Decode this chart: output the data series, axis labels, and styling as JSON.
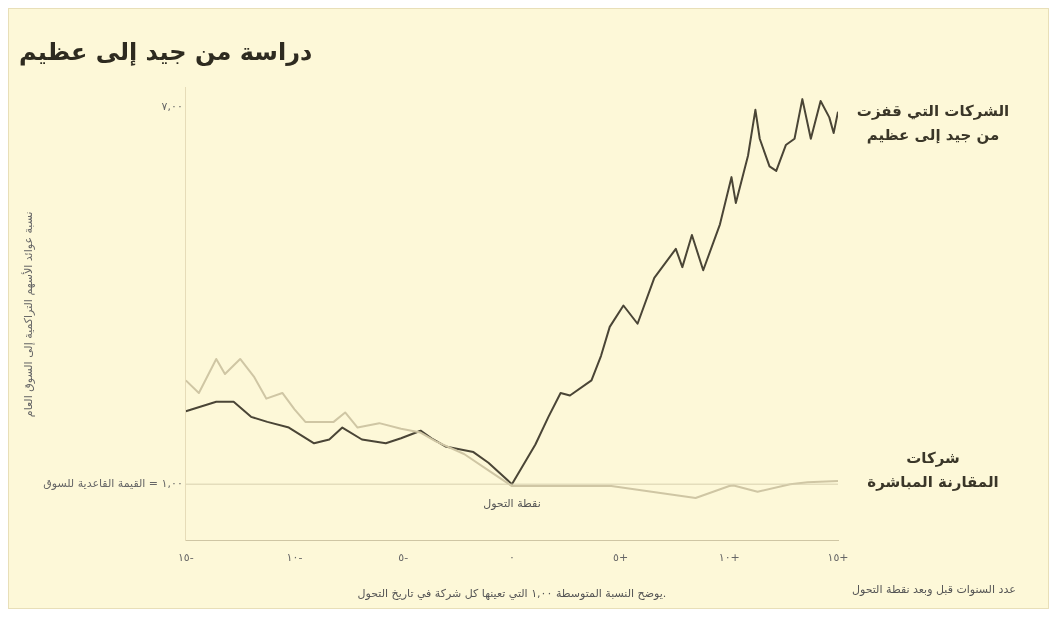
{
  "chart_data": {
    "type": "line",
    "title": "دراسة من جيد إلى عظيم",
    "xlabel": "عدد السنوات قبل وبعد نقطة التحول",
    "ylabel": "نسبة عوائد الأسهم التراكمية إلى السوق العام",
    "xlim": [
      -15,
      15
    ],
    "xticks": [
      {
        "value": -15,
        "label": "١٥-"
      },
      {
        "value": -10,
        "label": "١٠-"
      },
      {
        "value": -5,
        "label": "٥-"
      },
      {
        "value": 0,
        "label": "٠"
      },
      {
        "value": 5,
        "label": "٥+"
      },
      {
        "value": 10,
        "label": "١٠+"
      },
      {
        "value": 15,
        "label": "١٥+"
      }
    ],
    "ylim": [
      0.1,
      7.3
    ],
    "yticks": [
      {
        "value": 1,
        "label": "١,٠٠ = القيمة القاعدية للسوق"
      },
      {
        "value": 7,
        "label": "٧,٠٠"
      }
    ],
    "grid": false,
    "legend": false,
    "marker": "none",
    "line_style": "solid",
    "ref_lines": [
      {
        "axis": "y",
        "value": 1,
        "color": "#d8d0b0"
      }
    ],
    "annotations": [
      {
        "text": "نقطة التحول",
        "x": 0,
        "y": 1
      },
      "يوضح النسبة المتوسطة ١,٠٠ التي تعينها كل شركة في تاريخ التحول."
    ],
    "series": [
      {
        "name": "شركات المقارنة المباشرة",
        "color": "#cfc6a4",
        "x": [
          -15,
          -14.4,
          -13.6,
          -13.2,
          -12.5,
          -11.85,
          -11.3,
          -10.56,
          -10,
          -9.5,
          -8.2,
          -7.67,
          -7.1,
          -6.1,
          -5.1,
          -4.2,
          -3.5,
          -2.2,
          -1.08,
          0,
          1.34,
          4.57,
          8.45,
          10,
          10.2,
          11.3,
          12.8,
          13.6,
          15
        ],
        "values": [
          2.65,
          2.45,
          2.99,
          2.75,
          2.99,
          2.7,
          2.36,
          2.45,
          2.19,
          1.99,
          1.99,
          2.14,
          1.9,
          1.97,
          1.88,
          1.82,
          1.68,
          1.48,
          1.22,
          0.97,
          0.97,
          0.97,
          0.78,
          0.97,
          0.98,
          0.88,
          1.0,
          1.03,
          1.05
        ]
      },
      {
        "name": "الشركات التي قفزت من جيد إلى عظيم",
        "color": "#4a4536",
        "x": [
          -15,
          -13.6,
          -12.8,
          -12,
          -11.25,
          -10.26,
          -9.1,
          -8.4,
          -7.8,
          -6.9,
          -5.8,
          -5.1,
          -4.2,
          -3.7,
          -3.06,
          -1.77,
          -1.08,
          0,
          1.08,
          1.68,
          2.24,
          2.67,
          3.66,
          4.1,
          4.5,
          5.13,
          5.78,
          6.55,
          7.54,
          7.84,
          8.28,
          8.8,
          9.57,
          10.1,
          10.3,
          10.86,
          11.2,
          11.4,
          11.85,
          12.16,
          12.6,
          13,
          13.36,
          13.75,
          14.2,
          14.6,
          14.8,
          15
        ],
        "values": [
          2.16,
          2.31,
          2.31,
          2.07,
          1.99,
          1.9,
          1.65,
          1.71,
          1.9,
          1.71,
          1.65,
          1.73,
          1.85,
          1.73,
          1.6,
          1.51,
          1.34,
          1.0,
          1.63,
          2.07,
          2.45,
          2.41,
          2.65,
          3.04,
          3.5,
          3.84,
          3.55,
          4.28,
          4.74,
          4.45,
          4.96,
          4.4,
          5.13,
          5.88,
          5.47,
          6.22,
          6.95,
          6.49,
          6.05,
          5.98,
          6.39,
          6.49,
          7.12,
          6.49,
          7.09,
          6.83,
          6.58,
          6.92
        ]
      }
    ]
  }
}
